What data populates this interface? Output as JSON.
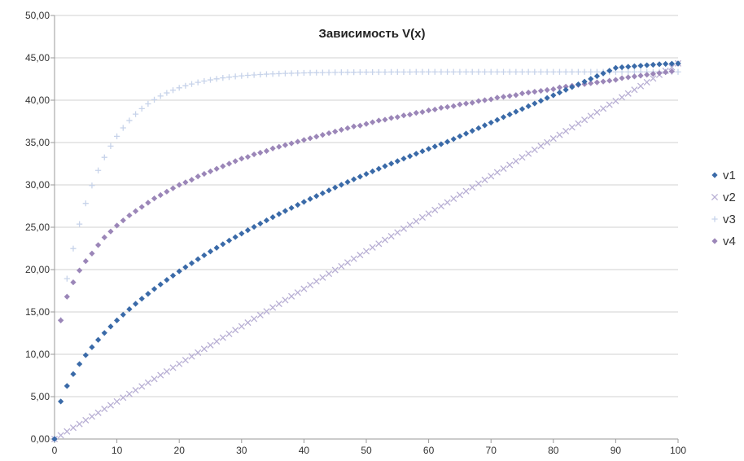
{
  "chart_data": {
    "type": "scatter",
    "title": "Зависимость V(x)",
    "xlabel": "",
    "ylabel": "",
    "xlim": [
      0,
      100
    ],
    "ylim": [
      0,
      50
    ],
    "x_ticks": [
      "0",
      "10",
      "20",
      "30",
      "40",
      "50",
      "60",
      "70",
      "80",
      "90",
      "100"
    ],
    "y_ticks": [
      "0,00",
      "5,00",
      "10,00",
      "15,00",
      "20,00",
      "25,00",
      "30,00",
      "35,00",
      "40,00",
      "45,00",
      "50,00"
    ],
    "grid": "horizontal",
    "legend_position": "right",
    "x": [
      0,
      1,
      2,
      3,
      4,
      5,
      6,
      7,
      8,
      9,
      10,
      11,
      12,
      13,
      14,
      15,
      16,
      17,
      18,
      19,
      20,
      21,
      22,
      23,
      24,
      25,
      26,
      27,
      28,
      29,
      30,
      31,
      32,
      33,
      34,
      35,
      36,
      37,
      38,
      39,
      40,
      41,
      42,
      43,
      44,
      45,
      46,
      47,
      48,
      49,
      50,
      51,
      52,
      53,
      54,
      55,
      56,
      57,
      58,
      59,
      60,
      61,
      62,
      63,
      64,
      65,
      66,
      67,
      68,
      69,
      70,
      71,
      72,
      73,
      74,
      75,
      76,
      77,
      78,
      79,
      80,
      81,
      82,
      83,
      84,
      85,
      86,
      87,
      88,
      89,
      90,
      91,
      92,
      93,
      94,
      95,
      96,
      97,
      98,
      99,
      100
    ],
    "series": [
      {
        "name": "v1",
        "marker": "diamond",
        "color": "#3a6aa8",
        "values": [
          0.0,
          4.43,
          6.26,
          7.67,
          8.85,
          9.9,
          10.84,
          11.71,
          12.52,
          13.28,
          14.0,
          14.68,
          15.33,
          15.96,
          16.56,
          17.14,
          17.71,
          18.25,
          18.78,
          19.29,
          19.8,
          20.29,
          20.76,
          21.23,
          21.69,
          22.14,
          22.57,
          23.0,
          23.43,
          23.84,
          24.25,
          24.65,
          25.04,
          25.43,
          25.81,
          26.19,
          26.56,
          26.92,
          27.28,
          27.64,
          27.99,
          28.34,
          28.68,
          29.02,
          29.35,
          29.69,
          30.01,
          30.34,
          30.66,
          30.97,
          31.29,
          31.6,
          31.9,
          32.21,
          32.51,
          32.8,
          33.1,
          33.39,
          33.68,
          33.97,
          34.25,
          34.53,
          34.81,
          35.09,
          35.41,
          35.74,
          36.06,
          36.38,
          36.7,
          37.03,
          37.35,
          37.67,
          38.0,
          38.32,
          38.64,
          38.96,
          39.29,
          39.61,
          39.93,
          40.26,
          40.58,
          40.9,
          41.22,
          41.55,
          41.87,
          42.19,
          42.51,
          42.84,
          43.16,
          43.48,
          43.81,
          43.89,
          43.95,
          44.01,
          44.07,
          44.13,
          44.18,
          44.24,
          44.28,
          44.31,
          44.34
        ]
      },
      {
        "name": "v2",
        "marker": "cross",
        "color": "#b8afd4",
        "values": [
          0.0,
          0.44,
          0.89,
          1.33,
          1.77,
          2.22,
          2.66,
          3.1,
          3.55,
          3.99,
          4.43,
          4.88,
          5.32,
          5.76,
          6.21,
          6.65,
          7.09,
          7.54,
          7.98,
          8.42,
          8.87,
          9.31,
          9.75,
          10.2,
          10.64,
          11.08,
          11.53,
          11.97,
          12.41,
          12.86,
          13.3,
          13.74,
          14.19,
          14.63,
          15.07,
          15.52,
          15.96,
          16.4,
          16.85,
          17.29,
          17.73,
          18.18,
          18.62,
          19.06,
          19.51,
          19.95,
          20.39,
          20.84,
          21.28,
          21.72,
          22.17,
          22.61,
          23.05,
          23.5,
          23.94,
          24.38,
          24.83,
          25.27,
          25.71,
          26.16,
          26.6,
          27.04,
          27.49,
          27.93,
          28.37,
          28.82,
          29.26,
          29.7,
          30.15,
          30.59,
          31.03,
          31.48,
          31.92,
          32.36,
          32.81,
          33.25,
          33.69,
          34.14,
          34.58,
          35.02,
          35.47,
          35.91,
          36.35,
          36.8,
          37.24,
          37.68,
          38.13,
          38.57,
          39.01,
          39.46,
          39.9,
          40.34,
          40.79,
          41.23,
          41.67,
          42.12,
          42.56,
          43.0,
          43.45,
          43.89,
          44.34
        ]
      },
      {
        "name": "v3",
        "marker": "plus",
        "color": "#c7d3ea",
        "values": [
          0.0,
          14.04,
          18.93,
          22.48,
          25.37,
          27.82,
          29.93,
          31.71,
          33.25,
          34.58,
          35.73,
          36.73,
          37.6,
          38.35,
          39.0,
          39.57,
          40.06,
          40.49,
          40.86,
          41.18,
          41.46,
          41.7,
          41.91,
          42.1,
          42.26,
          42.4,
          42.52,
          42.63,
          42.72,
          42.8,
          42.87,
          42.93,
          42.98,
          43.03,
          43.07,
          43.1,
          43.13,
          43.16,
          43.18,
          43.2,
          43.22,
          43.24,
          43.25,
          43.26,
          43.27,
          43.28,
          43.29,
          43.3,
          43.3,
          43.31,
          43.31,
          43.32,
          43.32,
          43.32,
          43.33,
          43.33,
          43.33,
          43.33,
          43.34,
          43.34,
          43.34,
          43.34,
          43.34,
          43.34,
          43.34,
          43.34,
          43.34,
          43.34,
          43.34,
          43.34,
          43.34,
          43.34,
          43.34,
          43.34,
          43.34,
          43.34,
          43.34,
          43.34,
          43.34,
          43.34,
          43.34,
          43.34,
          43.34,
          43.34,
          43.34,
          43.34,
          43.34,
          43.34,
          43.34,
          43.34,
          43.34,
          43.34,
          43.34,
          43.34,
          43.34,
          43.34,
          43.34,
          43.34,
          43.34,
          43.34,
          43.34
        ]
      },
      {
        "name": "v4",
        "marker": "diamond",
        "color": "#9b86b8",
        "values": [
          0.0,
          14.0,
          16.8,
          18.5,
          19.9,
          21.0,
          21.9,
          22.9,
          23.8,
          24.5,
          25.2,
          25.8,
          26.4,
          26.9,
          27.4,
          27.9,
          28.4,
          28.8,
          29.2,
          29.6,
          30.0,
          30.3,
          30.6,
          31.0,
          31.3,
          31.6,
          31.9,
          32.2,
          32.5,
          32.8,
          33.1,
          33.3,
          33.6,
          33.8,
          34.0,
          34.3,
          34.5,
          34.7,
          34.9,
          35.1,
          35.3,
          35.5,
          35.7,
          35.9,
          36.1,
          36.3,
          36.5,
          36.7,
          36.9,
          37.0,
          37.2,
          37.4,
          37.6,
          37.7,
          37.9,
          38.0,
          38.2,
          38.3,
          38.5,
          38.6,
          38.8,
          38.9,
          39.1,
          39.2,
          39.3,
          39.5,
          39.6,
          39.7,
          39.9,
          40.0,
          40.1,
          40.3,
          40.4,
          40.5,
          40.6,
          40.8,
          40.9,
          41.0,
          41.1,
          41.2,
          41.3,
          41.5,
          41.6,
          41.7,
          41.8,
          41.9,
          42.0,
          42.1,
          42.2,
          42.3,
          42.4,
          42.6,
          42.7,
          42.8,
          42.9,
          43.0,
          43.1,
          43.2,
          43.3,
          43.4,
          44.3
        ]
      }
    ]
  }
}
